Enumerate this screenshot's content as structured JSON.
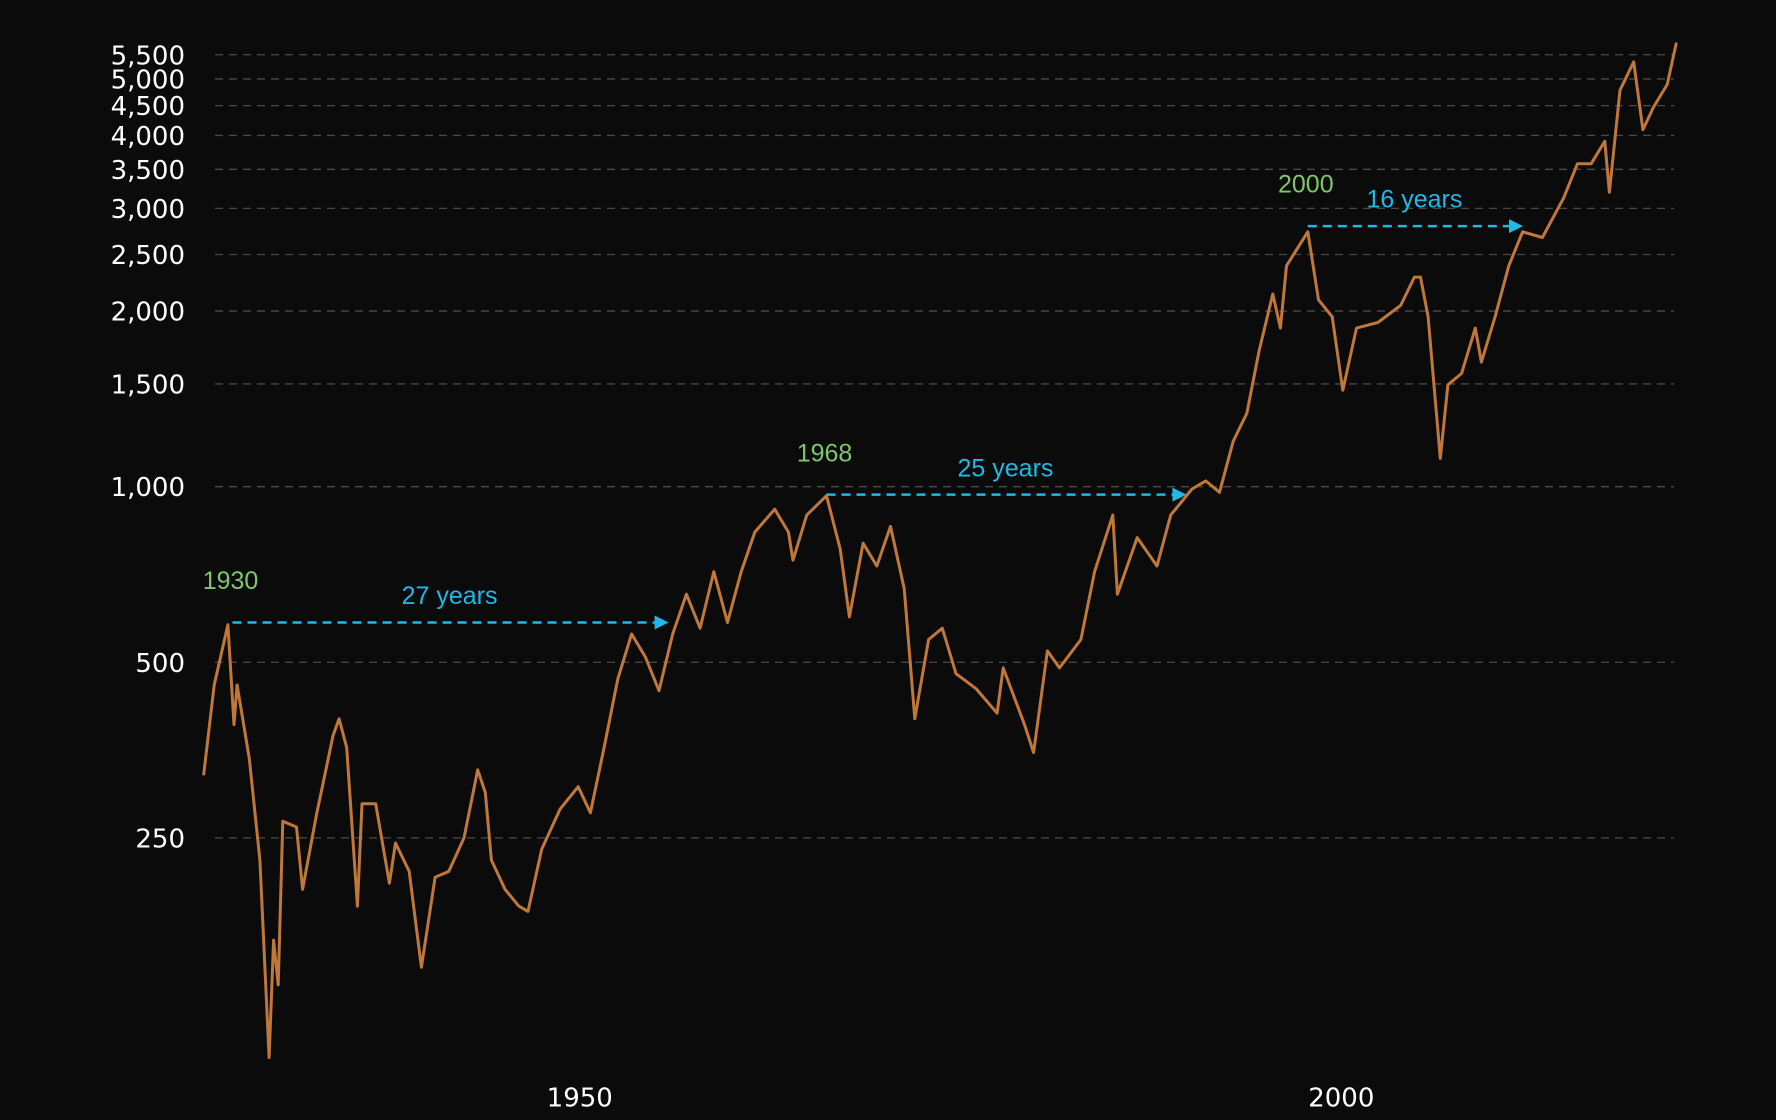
{
  "chart_data": {
    "type": "line",
    "x": [
      1925.3,
      1926.0,
      1926.9,
      1927.3,
      1927.5,
      1928.3,
      1929.0,
      1929.6,
      1929.9,
      1930.2,
      1930.5,
      1931.4,
      1931.8,
      1932.7,
      1933.8,
      1934.2,
      1934.7,
      1935.1,
      1935.4,
      1935.7,
      1936.6,
      1937.5,
      1937.9,
      1938.8,
      1939.6,
      1940.5,
      1941.4,
      1942.4,
      1943.3,
      1943.8,
      1944.2,
      1945.1,
      1946.0,
      1946.6,
      1947.5,
      1948.7,
      1949.9,
      1950.7,
      1951.6,
      1952.5,
      1953.4,
      1954.3,
      1955.2,
      1956.1,
      1957.0,
      1957.9,
      1958.8,
      1959.7,
      1960.6,
      1961.5,
      1962.8,
      1963.7,
      1964.0,
      1964.9,
      1966.2,
      1967.1,
      1967.7,
      1968.6,
      1969.5,
      1970.4,
      1971.3,
      1972.0,
      1972.9,
      1973.8,
      1974.7,
      1976.0,
      1977.4,
      1977.8,
      1979.2,
      1979.8,
      1980.7,
      1981.5,
      1982.9,
      1983.8,
      1985.0,
      1985.3,
      1986.6,
      1987.9,
      1988.8,
      1990.2,
      1991.1,
      1992.0,
      1992.9,
      1993.8,
      1994.6,
      1995.5,
      1996.0,
      1996.4,
      1997.8,
      1998.5,
      1999.4,
      2000.1,
      2001.0,
      2002.4,
      2003.9,
      2004.8,
      2005.2,
      2005.7,
      2006.5,
      2007.0,
      2007.9,
      2008.8,
      2009.2,
      2010.1,
      2011.0,
      2011.9,
      2013.2,
      2014.6,
      2015.5,
      2016.4,
      2017.3,
      2017.6,
      2018.3,
      2019.2,
      2019.8,
      2020.5,
      2021.4,
      2022.0
    ],
    "series": [
      {
        "color": "#c0773a",
        "values": [
          320,
          457,
          580,
          391,
          457,
          342,
          229,
          105,
          167,
          140,
          267,
          261,
          204,
          273,
          374,
          400,
          357,
          250,
          191,
          286,
          286,
          209,
          245,
          219,
          150,
          214,
          219,
          250,
          327,
          299,
          229,
          204,
          191,
          187,
          239,
          280,
          306,
          276,
          357,
          468,
          559,
          511,
          447,
          559,
          654,
          572,
          715,
          585,
          715,
          836,
          915,
          836,
          748,
          894,
          965,
          782,
          598,
          800,
          731,
          855,
          669,
          400,
          547,
          572,
          478,
          451,
          409,
          489,
          391,
          350,
          523,
          489,
          547,
          715,
          894,
          654,
          818,
          731,
          894,
          991,
          1023,
          978,
          1196,
          1337,
          1710,
          2139,
          1870,
          2391,
          2735,
          2091,
          1956,
          1463,
          1870,
          1912,
          2045,
          2287,
          2287,
          1956,
          1118,
          1495,
          1564,
          1870,
          1635,
          1956,
          2391,
          2735,
          2674,
          3127,
          3577,
          3577,
          3911,
          3198,
          4782,
          5349,
          4090,
          4473,
          4891,
          5771
        ]
      }
    ],
    "xlim": [
      1925,
      2022.5
    ],
    "xticks": [
      1950,
      2000
    ],
    "ylim": [
      100,
      5900
    ],
    "log_scale": true,
    "grid": true,
    "yticks": [
      250,
      500,
      {
        "value": 1000,
        "label": "1,000"
      },
      {
        "value": 1500,
        "label": "1,500"
      },
      {
        "value": 2000,
        "label": "2,000"
      },
      {
        "value": 2500,
        "label": "2,500"
      },
      {
        "value": 3000,
        "label": "3,000"
      },
      {
        "value": 3500,
        "label": "3,500"
      },
      {
        "value": 4000,
        "label": "4,000"
      },
      {
        "value": 4500,
        "label": "4,500"
      },
      {
        "value": 5000,
        "label": "5,000"
      },
      {
        "value": 5500,
        "label": "5,500"
      }
    ],
    "annotations": [
      {
        "label": "1930",
        "text": "27 years",
        "x": [
          1927.2,
          1955.7
        ],
        "y": 585
      },
      {
        "label": "1968",
        "text": "25 years",
        "x": [
          1966.2,
          1989.7
        ],
        "y": 969
      },
      {
        "label": "2000",
        "text": "16 years",
        "x": [
          1997.8,
          2011.8
        ],
        "y": 2797
      }
    ],
    "annotation_label_color": "#7cc86a",
    "annotation_arrow_color": "#22b8e6"
  }
}
